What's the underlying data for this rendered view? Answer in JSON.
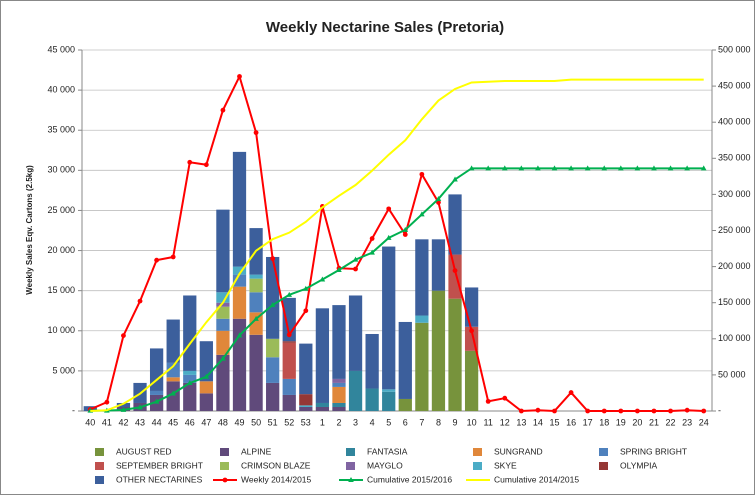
{
  "chart_data": {
    "type": "bar",
    "stacked": true,
    "title": "Weekly Nectarine Sales (Pretoria)",
    "y_label": "Weekly Sales Eqv. Cartons (2.5kg)",
    "categories": [
      "40",
      "41",
      "42",
      "43",
      "44",
      "45",
      "46",
      "47",
      "48",
      "49",
      "50",
      "51",
      "52",
      "53",
      "1",
      "2",
      "3",
      "4",
      "5",
      "6",
      "7",
      "8",
      "9",
      "10",
      "11",
      "12",
      "13",
      "14",
      "15",
      "16",
      "17",
      "18",
      "19",
      "20",
      "21",
      "22",
      "23",
      "24"
    ],
    "ylim": [
      0,
      45000
    ],
    "yticks": [
      {
        "value": 0,
        "label": "-"
      },
      {
        "value": 5000,
        "label": "5 000"
      },
      {
        "value": 10000,
        "label": "10 000"
      },
      {
        "value": 15000,
        "label": "15 000"
      },
      {
        "value": 20000,
        "label": "20 000"
      },
      {
        "value": 25000,
        "label": "25 000"
      },
      {
        "value": 30000,
        "label": "30 000"
      },
      {
        "value": 35000,
        "label": "35 000"
      },
      {
        "value": 40000,
        "label": "40 000"
      },
      {
        "value": 45000,
        "label": "45 000"
      }
    ],
    "y2lim": [
      0,
      500000
    ],
    "y2ticks": [
      {
        "value": 0,
        "label": "-"
      },
      {
        "value": 50000,
        "label": "50 000"
      },
      {
        "value": 100000,
        "label": "100 000"
      },
      {
        "value": 150000,
        "label": "150 000"
      },
      {
        "value": 200000,
        "label": "200 000"
      },
      {
        "value": 250000,
        "label": "250 000"
      },
      {
        "value": 300000,
        "label": "300 000"
      },
      {
        "value": 350000,
        "label": "350 000"
      },
      {
        "value": 400000,
        "label": "400 000"
      },
      {
        "value": 450000,
        "label": "450 000"
      },
      {
        "value": 500000,
        "label": "500 000"
      }
    ],
    "grid": true,
    "legend": "bottom",
    "series": [
      {
        "name": "AUGUST RED",
        "color": "#77933c",
        "values": [
          0,
          0,
          0,
          0,
          0,
          0,
          0,
          0,
          0,
          0,
          0,
          0,
          0,
          0,
          0,
          0,
          0,
          0,
          0,
          1500,
          11000,
          15000,
          14000,
          7500,
          0,
          0,
          0,
          0,
          0,
          0,
          0,
          0,
          0,
          0,
          0,
          0,
          0,
          0
        ]
      },
      {
        "name": "ALPINE",
        "color": "#604a7b",
        "values": [
          0,
          0,
          500,
          1000,
          2000,
          3700,
          3500,
          2200,
          7000,
          11500,
          9500,
          3500,
          2000,
          500,
          500,
          500,
          0,
          0,
          0,
          0,
          0,
          0,
          0,
          0,
          0,
          0,
          0,
          0,
          0,
          0,
          0,
          0,
          0,
          0,
          0,
          0,
          0,
          0
        ]
      },
      {
        "name": "FANTASIA",
        "color": "#31859c",
        "values": [
          0,
          0,
          0,
          0,
          0,
          0,
          0,
          0,
          0,
          0,
          0,
          0,
          0,
          0,
          500,
          500,
          5000,
          2800,
          2400,
          0,
          0,
          0,
          0,
          0,
          0,
          0,
          0,
          0,
          0,
          0,
          0,
          0,
          0,
          0,
          0,
          0,
          0,
          0
        ]
      },
      {
        "name": "SUNGRAND",
        "color": "#e0873a",
        "values": [
          0,
          0,
          0,
          0,
          0,
          500,
          0,
          1500,
          3000,
          4000,
          2800,
          0,
          0,
          0,
          0,
          2000,
          0,
          0,
          0,
          0,
          0,
          0,
          0,
          0,
          0,
          0,
          0,
          0,
          0,
          0,
          0,
          0,
          0,
          0,
          0,
          0,
          0,
          0
        ]
      },
      {
        "name": "SPRING BRIGHT",
        "color": "#4f81bd",
        "values": [
          0,
          0,
          0,
          0,
          500,
          1800,
          1000,
          0,
          1500,
          1500,
          2500,
          3200,
          2000,
          0,
          0,
          500,
          0,
          0,
          0,
          0,
          0,
          0,
          0,
          0,
          0,
          0,
          0,
          0,
          0,
          0,
          0,
          0,
          0,
          0,
          0,
          0,
          0,
          0
        ]
      },
      {
        "name": "SEPTEMBER BRIGHT",
        "color": "#c0504d",
        "values": [
          0,
          0,
          0,
          0,
          0,
          0,
          0,
          0,
          0,
          0,
          0,
          0,
          4500,
          0,
          0,
          0,
          0,
          0,
          0,
          0,
          0,
          0,
          5500,
          3000,
          0,
          0,
          0,
          0,
          0,
          0,
          0,
          0,
          0,
          0,
          0,
          0,
          0,
          0
        ]
      },
      {
        "name": "CRIMSON BLAZE",
        "color": "#9bbb59",
        "values": [
          0,
          0,
          0,
          0,
          0,
          0,
          0,
          0,
          1500,
          0,
          1700,
          2300,
          0,
          0,
          0,
          0,
          0,
          0,
          0,
          0,
          0,
          0,
          0,
          0,
          0,
          0,
          0,
          0,
          0,
          0,
          0,
          0,
          0,
          0,
          0,
          0,
          0,
          0
        ]
      },
      {
        "name": "MAYGLO",
        "color": "#8064a2",
        "values": [
          0,
          0,
          0,
          0,
          0,
          0,
          0,
          0,
          500,
          0,
          0,
          0,
          0,
          0,
          0,
          500,
          0,
          0,
          0,
          0,
          0,
          0,
          0,
          0,
          0,
          0,
          0,
          0,
          0,
          0,
          0,
          0,
          0,
          0,
          0,
          0,
          0,
          0
        ]
      },
      {
        "name": "SKYE",
        "color": "#4bacc6",
        "values": [
          0,
          0,
          0,
          0,
          0,
          0,
          500,
          0,
          1300,
          1000,
          500,
          0,
          0,
          200,
          0,
          0,
          0,
          0,
          300,
          0,
          900,
          0,
          0,
          0,
          0,
          0,
          0,
          0,
          0,
          0,
          0,
          0,
          0,
          0,
          0,
          0,
          0,
          0
        ]
      },
      {
        "name": "OLYMPIA",
        "color": "#953735",
        "values": [
          0,
          0,
          0,
          0,
          0,
          0,
          0,
          0,
          0,
          0,
          0,
          0,
          200,
          1400,
          0,
          0,
          0,
          0,
          0,
          0,
          0,
          0,
          0,
          0,
          0,
          0,
          0,
          0,
          0,
          0,
          0,
          0,
          0,
          0,
          0,
          0,
          0,
          0
        ]
      },
      {
        "name": "OTHER NECTARINES",
        "color": "#3c5f9c",
        "values": [
          600,
          0,
          500,
          2500,
          5300,
          5400,
          9400,
          5000,
          10300,
          14300,
          5800,
          10200,
          5400,
          6300,
          11800,
          9200,
          9400,
          6800,
          17800,
          9600,
          9500,
          6400,
          7500,
          4900,
          0,
          0,
          0,
          0,
          0,
          0,
          0,
          0,
          0,
          0,
          0,
          0,
          0,
          0
        ]
      },
      {
        "name": "Weekly 2014/2015",
        "color": "#ff0000",
        "type": "line",
        "marker": "circle",
        "values": [
          200,
          1100,
          9400,
          13700,
          18800,
          19200,
          31000,
          30700,
          37500,
          41700,
          34700,
          19000,
          9500,
          12500,
          25500,
          17800,
          17700,
          21500,
          25200,
          22000,
          29500,
          26000,
          17500,
          10000,
          1200,
          1600,
          0,
          100,
          0,
          2300,
          0,
          0,
          0,
          0,
          0,
          0,
          100,
          0
        ]
      },
      {
        "name": "Cumulative 2015/2016",
        "color": "#00b050",
        "type": "line",
        "marker": "triangle",
        "axis": "y2",
        "values": [
          600,
          600,
          1600,
          5100,
          12900,
          24300,
          38700,
          47400,
          72500,
          104800,
          127600,
          146800,
          160900,
          169300,
          182100,
          195300,
          209700,
          219300,
          239800,
          250900,
          272300,
          293700,
          320700,
          336100,
          336100,
          336100,
          336100,
          336100,
          336100,
          336100,
          336100,
          336100,
          336100,
          336100,
          336100,
          336100,
          336100,
          336100
        ]
      },
      {
        "name": "Cumulative 2014/2015",
        "color": "#ffff00",
        "type": "line",
        "axis": "y2",
        "values": [
          0,
          1000,
          10000,
          24000,
          43000,
          62000,
          93000,
          123000,
          150000,
          190000,
          222000,
          238000,
          247000,
          262000,
          282000,
          298000,
          313000,
          333000,
          355000,
          375000,
          404000,
          430000,
          446000,
          455000,
          456000,
          457000,
          457000,
          457000,
          457000,
          459000,
          459000,
          459000,
          459000,
          459000,
          459000,
          459000,
          459000,
          459000
        ]
      }
    ]
  }
}
